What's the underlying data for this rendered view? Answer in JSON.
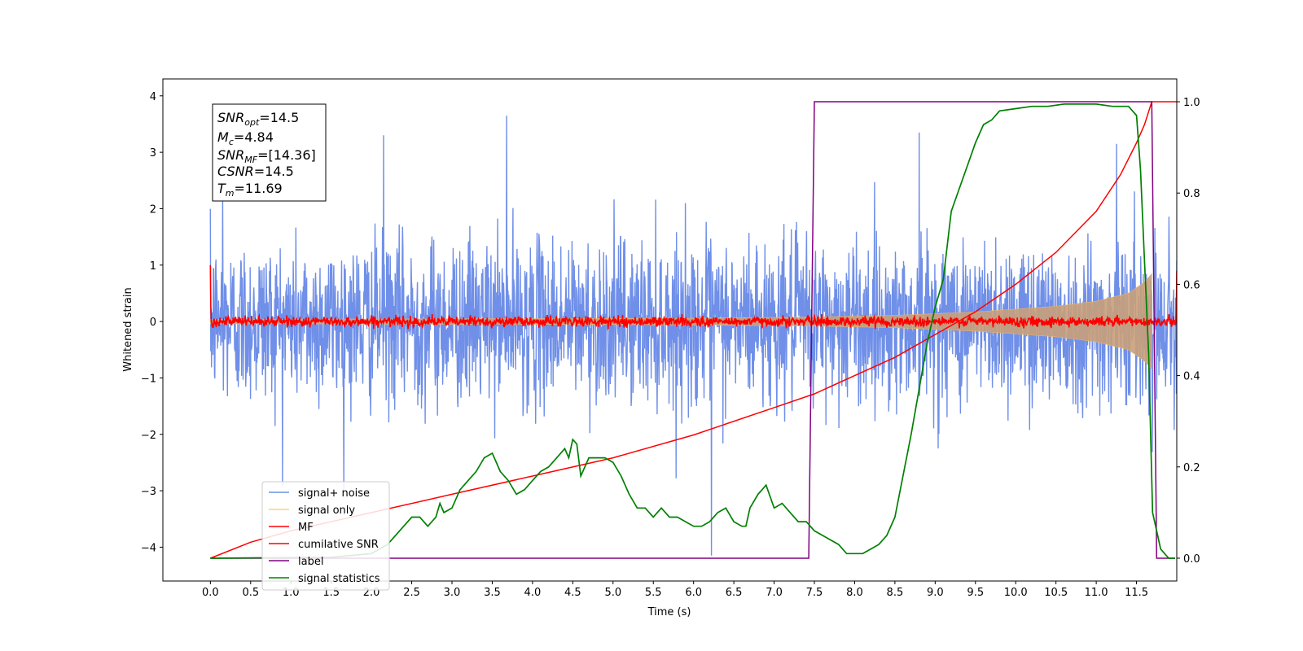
{
  "chart_data": {
    "type": "line",
    "xlabel": "Time (s)",
    "ylabel": "Whitened strain",
    "xlim": [
      -0.59,
      12.0
    ],
    "ylim": [
      -4.6,
      4.3
    ],
    "y2lim": [
      -0.05,
      1.05
    ],
    "xticks": [
      "0.0",
      "0.5",
      "1.0",
      "1.5",
      "2.0",
      "2.5",
      "3.0",
      "3.5",
      "4.0",
      "4.5",
      "5.0",
      "5.5",
      "6.0",
      "6.5",
      "7.0",
      "7.5",
      "8.0",
      "8.5",
      "9.0",
      "9.5",
      "10.0",
      "10.5",
      "11.0",
      "11.5"
    ],
    "yticks": [
      "4",
      "3",
      "2",
      "1",
      "0",
      "−1",
      "−2",
      "−3",
      "−4"
    ],
    "y2ticks": [
      "1.0",
      "0.8",
      "0.6",
      "0.4",
      "0.2",
      "0.0"
    ],
    "grid": false,
    "legend_position": "lower-left",
    "annotation": {
      "snr_opt": "14.5",
      "mc": "4.84",
      "snr_mf": "[14.36]",
      "csnr": "14.5",
      "tm": "11.69"
    },
    "series": [
      {
        "name": "signal+ noise",
        "color": "#6f8fe8",
        "axis": "left",
        "kind": "noise",
        "x_range": [
          0.0,
          12.0
        ],
        "std": 0.72,
        "spikes": [
          [
            3.68,
            3.65
          ],
          [
            6.22,
            -4.15
          ],
          [
            2.15,
            3.3
          ],
          [
            8.8,
            3.35
          ],
          [
            11.25,
            3.15
          ],
          [
            0.15,
            2.3
          ]
        ]
      },
      {
        "name": "signal only",
        "color": "#c9a07a",
        "axis": "left",
        "kind": "envelope",
        "x": [
          0.0,
          2.0,
          4.0,
          6.0,
          7.5,
          8.5,
          9.5,
          10.5,
          11.0,
          11.4,
          11.6,
          11.69
        ],
        "amplitude": [
          0.04,
          0.045,
          0.05,
          0.06,
          0.08,
          0.11,
          0.17,
          0.27,
          0.36,
          0.5,
          0.7,
          0.85
        ]
      },
      {
        "name": "MF",
        "color": "#ff0000",
        "axis": "left",
        "kind": "noise",
        "x_range": [
          0.0,
          12.0
        ],
        "std": 0.045,
        "edge_values": [
          1.0,
          0.9
        ]
      },
      {
        "name": "cumilative SNR",
        "color": "#ff0000",
        "axis": "right",
        "x": [
          0.0,
          0.5,
          1.0,
          2.0,
          3.0,
          4.0,
          5.0,
          6.0,
          7.0,
          7.5,
          8.0,
          8.5,
          9.0,
          9.5,
          10.0,
          10.5,
          11.0,
          11.3,
          11.5,
          11.6,
          11.69,
          11.7,
          12.0
        ],
        "y": [
          0.0,
          0.035,
          0.06,
          0.1,
          0.14,
          0.18,
          0.22,
          0.27,
          0.33,
          0.36,
          0.4,
          0.44,
          0.49,
          0.54,
          0.6,
          0.67,
          0.76,
          0.84,
          0.91,
          0.95,
          1.0,
          1.0,
          1.0
        ]
      },
      {
        "name": "label",
        "color": "#800080",
        "axis": "right",
        "x": [
          0.0,
          7.43,
          7.5,
          11.69,
          11.75,
          11.98
        ],
        "y": [
          0.0,
          0.0,
          1.0,
          1.0,
          0.0,
          0.0
        ]
      },
      {
        "name": "signal statistics",
        "color": "#008000",
        "axis": "right",
        "x": [
          0.0,
          1.5,
          2.0,
          2.2,
          2.4,
          2.5,
          2.6,
          2.7,
          2.8,
          2.85,
          2.9,
          3.0,
          3.1,
          3.2,
          3.3,
          3.4,
          3.5,
          3.6,
          3.7,
          3.8,
          3.9,
          4.0,
          4.1,
          4.2,
          4.3,
          4.4,
          4.45,
          4.5,
          4.55,
          4.6,
          4.7,
          4.8,
          4.9,
          5.0,
          5.1,
          5.2,
          5.3,
          5.4,
          5.5,
          5.6,
          5.7,
          5.8,
          5.9,
          6.0,
          6.1,
          6.2,
          6.3,
          6.4,
          6.5,
          6.6,
          6.65,
          6.7,
          6.8,
          6.9,
          7.0,
          7.1,
          7.2,
          7.3,
          7.4,
          7.5,
          7.6,
          7.7,
          7.8,
          7.9,
          8.0,
          8.1,
          8.2,
          8.3,
          8.4,
          8.5,
          8.6,
          8.7,
          8.8,
          8.9,
          9.0,
          9.1,
          9.2,
          9.3,
          9.4,
          9.5,
          9.6,
          9.7,
          9.8,
          10.0,
          10.2,
          10.4,
          10.6,
          10.8,
          11.0,
          11.2,
          11.3,
          11.4,
          11.5,
          11.55,
          11.6,
          11.65,
          11.7,
          11.75,
          11.8,
          11.9,
          11.98
        ],
        "y": [
          0.0,
          0.002,
          0.01,
          0.03,
          0.07,
          0.09,
          0.09,
          0.07,
          0.09,
          0.12,
          0.1,
          0.11,
          0.15,
          0.17,
          0.19,
          0.22,
          0.23,
          0.19,
          0.17,
          0.14,
          0.15,
          0.17,
          0.19,
          0.2,
          0.22,
          0.24,
          0.22,
          0.26,
          0.25,
          0.18,
          0.22,
          0.22,
          0.22,
          0.21,
          0.18,
          0.14,
          0.11,
          0.11,
          0.09,
          0.11,
          0.09,
          0.09,
          0.08,
          0.07,
          0.07,
          0.08,
          0.1,
          0.11,
          0.08,
          0.07,
          0.07,
          0.11,
          0.14,
          0.16,
          0.11,
          0.12,
          0.1,
          0.08,
          0.08,
          0.06,
          0.05,
          0.04,
          0.03,
          0.01,
          0.01,
          0.01,
          0.02,
          0.03,
          0.05,
          0.09,
          0.18,
          0.27,
          0.37,
          0.47,
          0.55,
          0.61,
          0.76,
          0.81,
          0.86,
          0.91,
          0.95,
          0.96,
          0.98,
          0.985,
          0.99,
          0.99,
          0.995,
          0.995,
          0.995,
          0.99,
          0.99,
          0.99,
          0.97,
          0.85,
          0.65,
          0.45,
          0.1,
          0.06,
          0.02,
          0.0,
          0.0
        ]
      }
    ]
  }
}
